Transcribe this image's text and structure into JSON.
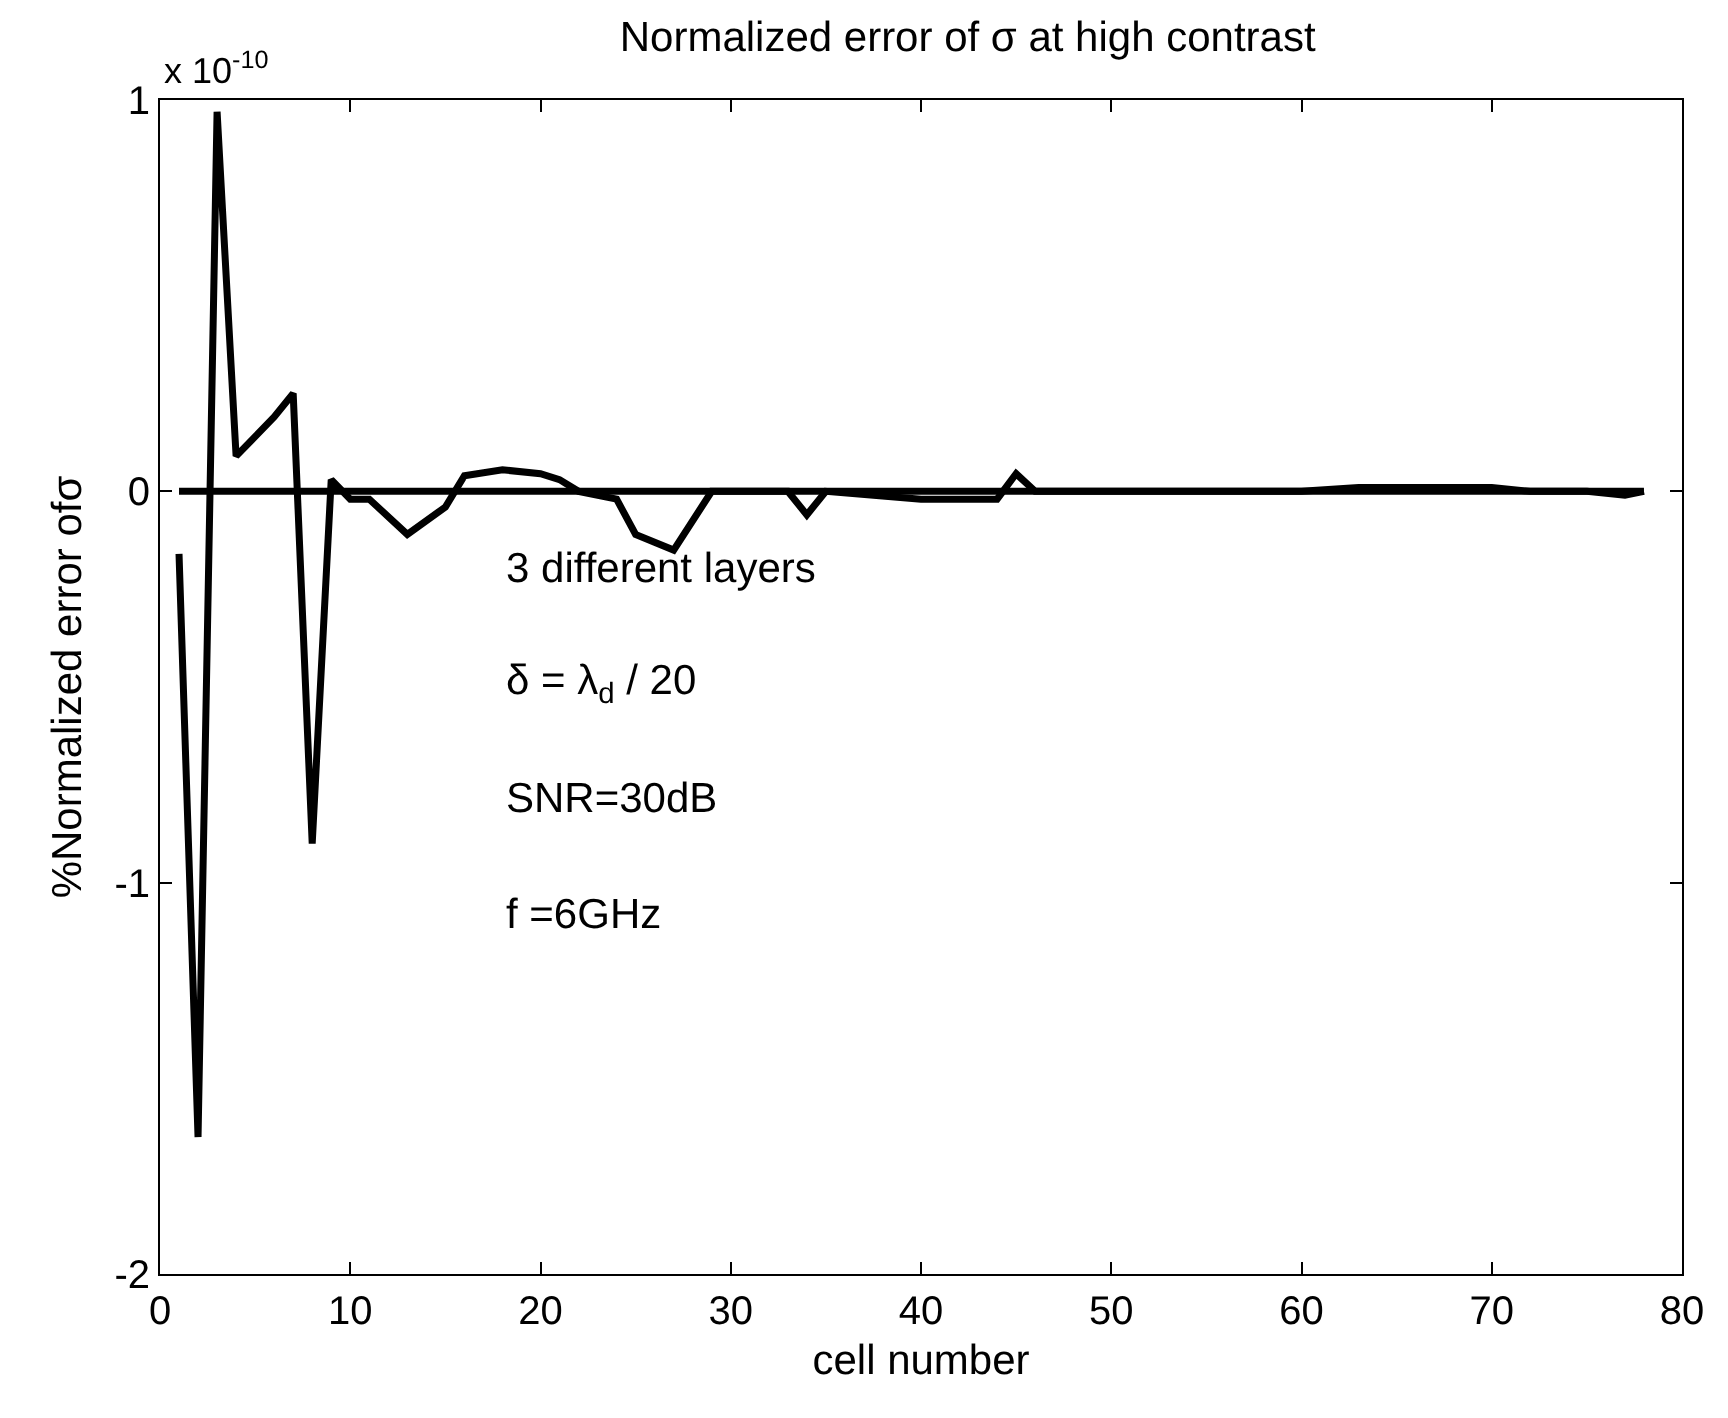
{
  "chart_data": {
    "type": "line",
    "title": "Normalized error of σ at high contrast",
    "xlabel": "cell number",
    "ylabel": "%Normalized error ofσ",
    "xlim": [
      0,
      80
    ],
    "xticks": [
      0,
      10,
      20,
      30,
      40,
      50,
      60,
      70,
      80
    ],
    "ylim": [
      -2,
      1
    ],
    "yticks": [
      -2,
      -1,
      0,
      1
    ],
    "marker": "none",
    "line_style": "solid",
    "annotations": [
      "x 10$^{-10}$",
      "3 different layers",
      "δ = λ$_{d}$ / 20",
      "SNR=30dB",
      "f =6GHz"
    ],
    "series": [
      {
        "color": "#000000",
        "x": [
          1,
          2,
          3,
          4,
          6,
          7,
          8,
          9,
          10,
          11,
          13,
          15,
          16,
          18,
          20,
          21,
          22,
          24,
          25,
          27,
          29,
          33,
          34,
          35,
          40,
          42,
          44,
          45,
          46,
          50,
          55,
          60,
          63,
          66,
          70,
          72,
          75,
          77,
          78
        ],
        "values": [
          -0.16,
          -1.65,
          0.97,
          0.09,
          0.19,
          0.25,
          -0.9,
          0.03,
          -0.02,
          -0.02,
          -0.11,
          -0.04,
          0.04,
          0.055,
          0.045,
          0.03,
          0,
          -0.02,
          -0.11,
          -0.15,
          0,
          0,
          -0.06,
          0,
          -0.02,
          -0.02,
          -0.02,
          0.045,
          0,
          0,
          0,
          0,
          0.01,
          0.01,
          0.01,
          0,
          0,
          -0.01,
          0
        ]
      },
      {
        "color": "#000000",
        "x": [
          1,
          78
        ],
        "values": [
          0,
          0
        ]
      }
    ]
  }
}
